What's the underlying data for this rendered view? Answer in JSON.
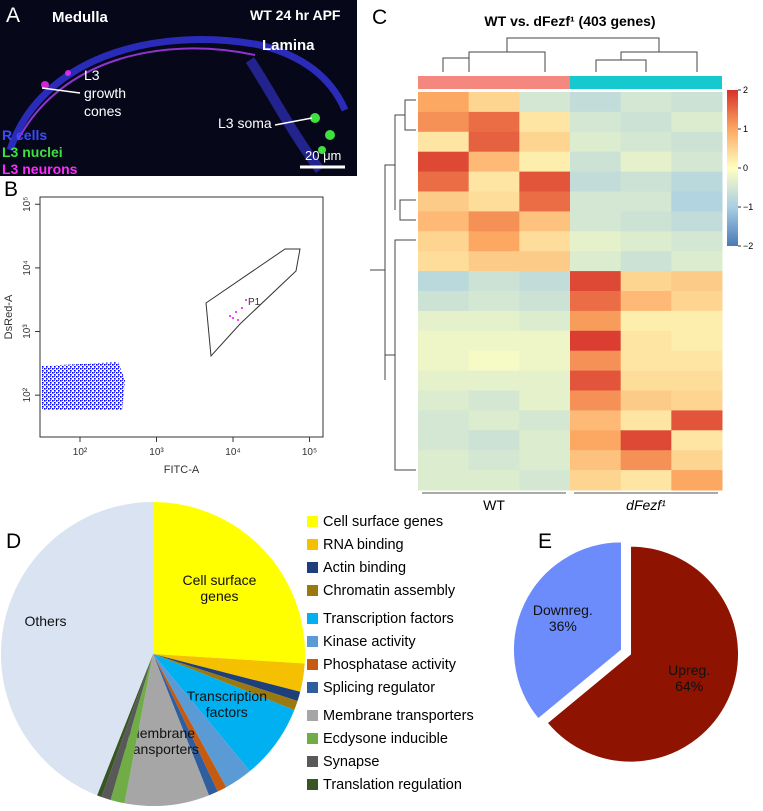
{
  "panel_labels": [
    "A",
    "B",
    "C",
    "D",
    "E"
  ],
  "image_a": {
    "region_top": "Medulla",
    "condition": "WT 24 hr APF",
    "region_right": "Lamina",
    "growth_cones": [
      "L3",
      "growth",
      "cones"
    ],
    "soma": "L3 soma",
    "channels": [
      {
        "name": "R cells",
        "color": "#3b4bff"
      },
      {
        "name": "L3 nuclei",
        "color": "#3fe03f"
      },
      {
        "name": "L3 neurons",
        "color": "#ff2bff"
      }
    ],
    "scale_bar": "20 μm"
  },
  "chart_data": [
    {
      "type": "scatter",
      "xlabel": "FITC-A",
      "ylabel": "DsRed-A",
      "log_scale": true,
      "xlim": [
        30,
        150000
      ],
      "ylim": [
        22,
        130000
      ],
      "xticks": [
        {
          "value": 100,
          "label": "10²"
        },
        {
          "value": 1000,
          "label": "10³"
        },
        {
          "value": 10000,
          "label": "10⁴"
        },
        {
          "value": 100000,
          "label": "10⁵"
        }
      ],
      "yticks": [
        {
          "value": 100,
          "label": "10²"
        },
        {
          "value": 1000,
          "label": "10³"
        },
        {
          "value": 10000,
          "label": "10⁴"
        },
        {
          "value": 100000,
          "label": "10⁵"
        }
      ],
      "gate_label": "P1",
      "color": "#0000ee",
      "gate_color": "#ff00ff"
    },
    {
      "type": "heatmap",
      "title": "WT vs. dFezf¹ (403 genes)",
      "groups": [
        {
          "name": "WT",
          "color": "#f4877e"
        },
        {
          "name": "dFezf¹",
          "color": "#16c9cf"
        }
      ],
      "matrix": [
        [
          1,
          0.5,
          -0.5,
          -0.7,
          -0.5,
          -0.6
        ],
        [
          1.2,
          1.5,
          0.3,
          -0.5,
          -0.6,
          -0.4
        ],
        [
          0.3,
          1.6,
          0.5,
          -0.4,
          -0.5,
          -0.6
        ],
        [
          1.8,
          0.8,
          0.2,
          -0.6,
          -0.3,
          -0.5
        ],
        [
          1.5,
          0.3,
          1.7,
          -0.7,
          -0.6,
          -0.8
        ],
        [
          0.6,
          0.4,
          1.5,
          -0.5,
          -0.5,
          -0.9
        ],
        [
          0.8,
          1.2,
          0.7,
          -0.5,
          -0.6,
          -0.7
        ],
        [
          0.5,
          1,
          0.4,
          -0.3,
          -0.4,
          -0.5
        ],
        [
          0.4,
          0.6,
          0.6,
          -0.4,
          -0.6,
          -0.4
        ],
        [
          -0.8,
          -0.6,
          -0.7,
          1.8,
          0.5,
          0.6
        ],
        [
          -0.6,
          -0.5,
          -0.6,
          1.5,
          0.8,
          0.5
        ],
        [
          -0.3,
          -0.3,
          -0.4,
          1.1,
          0.2,
          0.2
        ],
        [
          -0.2,
          -0.2,
          -0.2,
          1.9,
          0.3,
          0.2
        ],
        [
          -0.2,
          -0.1,
          -0.2,
          1.2,
          0.3,
          0.3
        ],
        [
          -0.3,
          -0.3,
          -0.3,
          1.7,
          0.4,
          0.4
        ],
        [
          -0.4,
          -0.5,
          -0.3,
          1.2,
          0.6,
          0.5
        ],
        [
          -0.5,
          -0.4,
          -0.5,
          0.8,
          0.3,
          1.7
        ],
        [
          -0.5,
          -0.6,
          -0.4,
          1,
          1.8,
          0.3
        ],
        [
          -0.4,
          -0.5,
          -0.4,
          0.7,
          1.2,
          0.5
        ],
        [
          -0.4,
          -0.4,
          -0.5,
          0.5,
          0.3,
          1
        ]
      ],
      "clim": [
        -2,
        2
      ],
      "colors": [
        "#4a7ab7",
        "#a8cfe3",
        "#ffffc0",
        "#fca862",
        "#d7312a"
      ],
      "cticks": [
        2,
        1,
        0,
        {
          "value": -1,
          "label": "−1"
        },
        {
          "value": -2,
          "label": "−2"
        }
      ]
    },
    {
      "type": "pie",
      "categories": [
        "Cell surface genes",
        "RNA binding",
        "Actin binding",
        "Chromatin assembly",
        "Transcription factors",
        "Kinase activity",
        "Phosphatase activity",
        "Splicing regulator",
        "Membrane transporters",
        "Ecdysone inducible",
        "Synapse",
        "Translation regulation"
      ],
      "values": [
        26,
        3,
        1,
        1,
        8,
        3,
        1,
        1,
        9,
        1.5,
        1,
        0.5
      ],
      "colors": [
        "#ffff00",
        "#f4c000",
        "#1f3f7a",
        "#9a7a10",
        "#00b0f0",
        "#5b9bd5",
        "#c55a11",
        "#2e5e9e",
        "#a6a6a6",
        "#70ad47",
        "#595959",
        "#375623"
      ],
      "others": {
        "name": "Others",
        "value": 44,
        "color": "#dae3f1"
      }
    },
    {
      "type": "pie",
      "categories": [
        "Upreg.",
        "Downreg."
      ],
      "values": [
        64,
        36
      ],
      "value_labels": [
        "64%",
        "36%"
      ],
      "colors": [
        "#8e1300",
        "#6d8cfb"
      ]
    }
  ]
}
